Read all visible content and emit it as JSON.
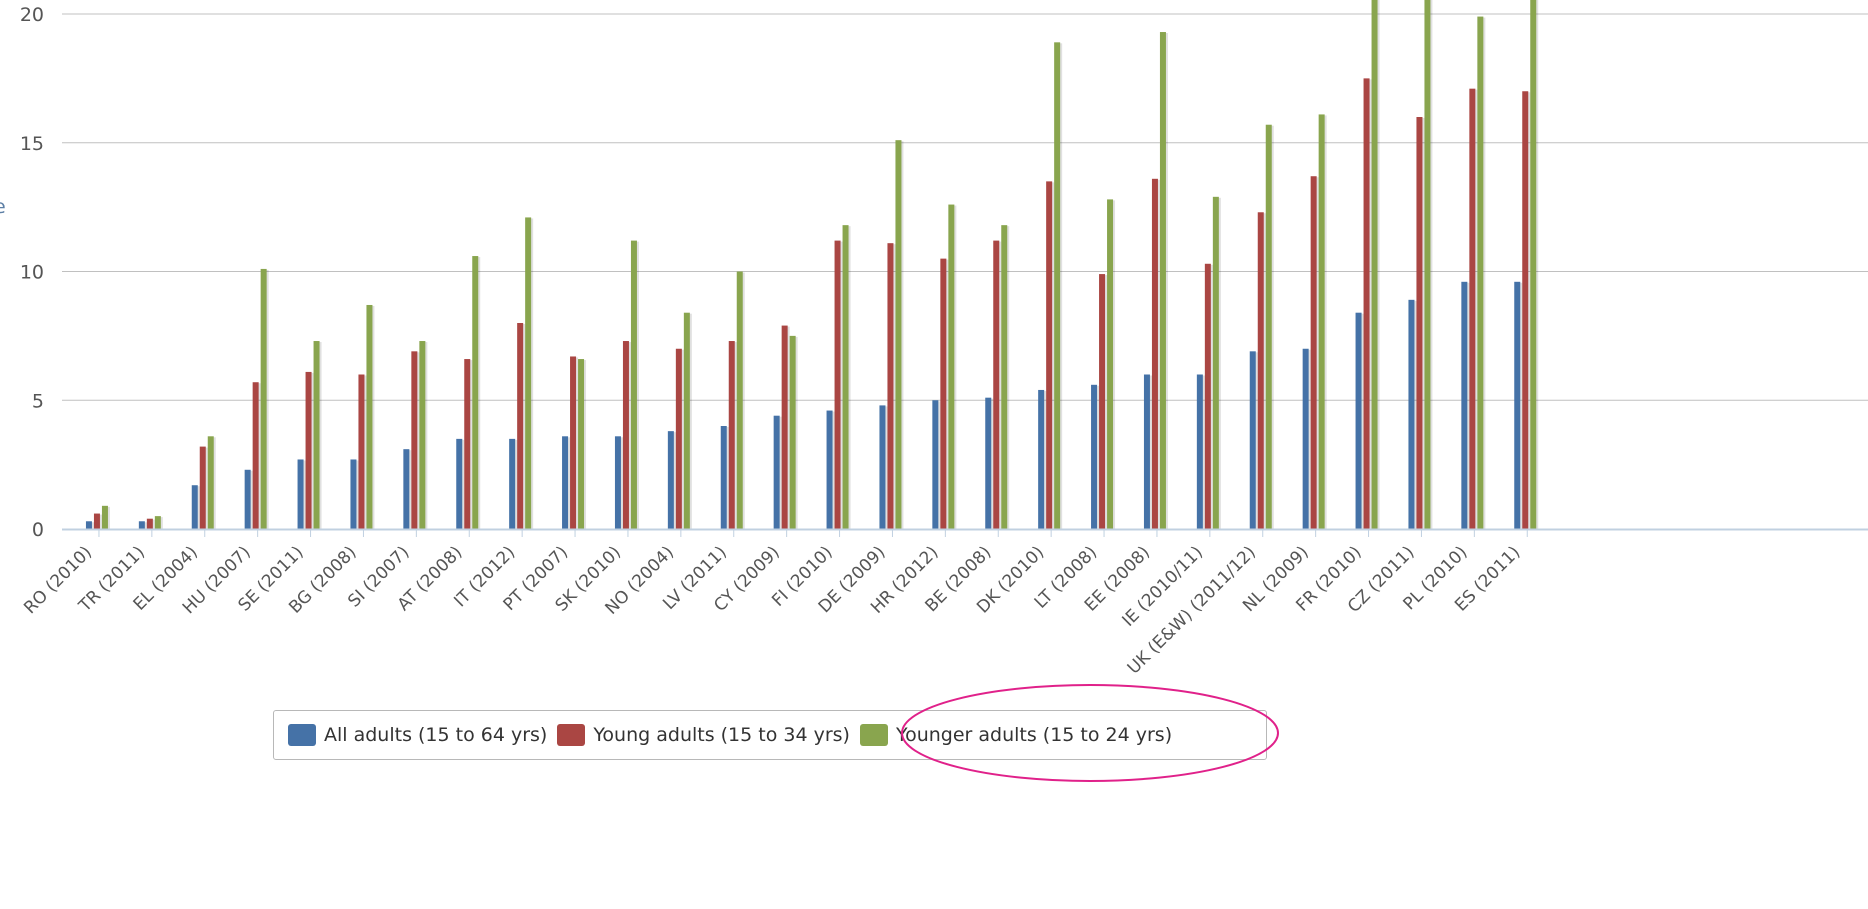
{
  "colors": {
    "all_adults": "#4572a7",
    "young_adults": "#aa4643",
    "younger_adults": "#89a54e",
    "gridline": "#c0c0c0",
    "axis": "#c0d0e0",
    "highlight": "#e0218a"
  },
  "y_axis_cut_label": "e",
  "legend": {
    "items": [
      {
        "label": "All adults (15 to 64 yrs)"
      },
      {
        "label": "Young adults (15 to 34 yrs)"
      },
      {
        "label": "Younger adults (15 to 24 yrs)"
      }
    ]
  },
  "chart_data": {
    "type": "bar",
    "title": "",
    "xlabel": "",
    "ylabel": "",
    "ylim": [
      0,
      20
    ],
    "yticks": [
      0,
      5,
      10,
      15,
      20
    ],
    "grid": true,
    "legend_position": "bottom",
    "categories": [
      "RO (2010)",
      "TR (2011)",
      "EL (2004)",
      "HU (2007)",
      "SE (2011)",
      "BG (2008)",
      "SI (2007)",
      "AT (2008)",
      "IT (2012)",
      "PT (2007)",
      "SK (2010)",
      "NO (2004)",
      "LV (2011)",
      "CY (2009)",
      "FI (2010)",
      "DE (2009)",
      "HR (2012)",
      "BE (2008)",
      "DK (2010)",
      "LT (2008)",
      "EE (2008)",
      "IE (2010/11)",
      "UK (E&W) (2011/12)",
      "NL (2009)",
      "FR (2010)",
      "CZ (2011)",
      "PL (2010)",
      "ES (2011)"
    ],
    "series": [
      {
        "name": "All adults (15 to 64 yrs)",
        "values": [
          0.3,
          0.3,
          1.7,
          2.3,
          2.7,
          2.7,
          3.1,
          3.5,
          3.5,
          3.6,
          3.6,
          3.8,
          4.0,
          4.4,
          4.6,
          4.8,
          5.0,
          5.1,
          5.4,
          5.6,
          6.0,
          6.0,
          6.9,
          7.0,
          8.4,
          8.9,
          9.6,
          9.6
        ]
      },
      {
        "name": "Young adults (15 to 34 yrs)",
        "values": [
          0.6,
          0.4,
          3.2,
          5.7,
          6.1,
          6.0,
          6.9,
          6.6,
          8.0,
          6.7,
          7.3,
          7.0,
          7.3,
          7.9,
          11.2,
          11.1,
          10.5,
          11.2,
          13.5,
          9.9,
          13.6,
          10.3,
          12.3,
          13.7,
          17.5,
          16.0,
          17.1,
          17.0
        ]
      },
      {
        "name": "Younger adults (15 to 24 yrs)",
        "values": [
          0.9,
          0.5,
          3.6,
          10.1,
          7.3,
          8.7,
          7.3,
          10.6,
          12.1,
          6.6,
          11.2,
          8.4,
          10.0,
          7.5,
          11.8,
          15.1,
          12.6,
          11.8,
          18.9,
          12.8,
          19.3,
          12.9,
          15.7,
          16.1,
          21.0,
          21.0,
          19.9,
          21.0
        ]
      }
    ]
  }
}
